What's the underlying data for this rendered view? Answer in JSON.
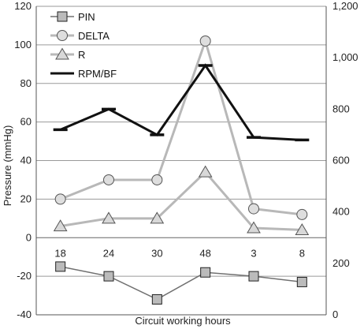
{
  "chart_data": {
    "type": "line",
    "categories": [
      "18",
      "24",
      "30",
      "48",
      "3",
      "8"
    ],
    "xlabel": "Circuit working hours",
    "ylabel": "Pressure (mmHg)",
    "y_left": {
      "min": -40,
      "max": 120,
      "ticks": [
        "-40",
        "-20",
        "0",
        "20",
        "40",
        "60",
        "80",
        "100",
        "120"
      ],
      "tick_values": [
        -40,
        -20,
        0,
        20,
        40,
        60,
        80,
        100,
        120
      ]
    },
    "y_right": {
      "min": 0,
      "max": 1200,
      "ticks": [
        "0",
        "200",
        "400",
        "600",
        "800",
        "1,000",
        "1,200"
      ],
      "tick_values": [
        0,
        200,
        400,
        600,
        800,
        1000,
        1200
      ]
    },
    "grid": "horizontal",
    "legend": "top-left",
    "series": [
      {
        "name": "PIN",
        "axis": "left",
        "marker": "square",
        "color": "#707070",
        "fill": "#bbbbbb",
        "values": [
          -15,
          -20,
          -32,
          -18,
          -20,
          -23
        ]
      },
      {
        "name": "DELTA",
        "axis": "left",
        "marker": "circle",
        "color": "#b8b8b8",
        "fill": "#dedede",
        "values": [
          20,
          30,
          30,
          102,
          15,
          12
        ]
      },
      {
        "name": "R",
        "axis": "left",
        "marker": "triangle",
        "color": "#b8b8b8",
        "fill": "#d8d8d8",
        "values": [
          6,
          10,
          10,
          34,
          5,
          4
        ]
      },
      {
        "name": "RPM/BF",
        "axis": "right",
        "marker": "dash",
        "color": "#111111",
        "values": [
          720,
          800,
          700,
          970,
          690,
          680
        ]
      }
    ]
  }
}
